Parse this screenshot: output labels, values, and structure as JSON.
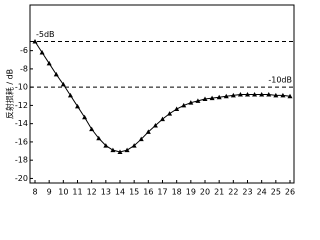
{
  "chart_data": {
    "type": "line",
    "y_label": "反射损耗 / dB",
    "x": [
      8,
      8.5,
      9,
      9.5,
      10,
      10.5,
      11,
      11.5,
      12,
      12.5,
      13,
      13.5,
      14,
      14.5,
      15,
      15.5,
      16,
      16.5,
      17,
      17.5,
      18,
      18.5,
      19,
      19.5,
      20,
      20.5,
      21,
      21.5,
      22,
      22.5,
      23,
      23.5,
      24,
      24.5,
      25,
      25.5,
      26
    ],
    "series": [
      {
        "color": "#000000",
        "values": [
          -5,
          -6.2,
          -7.4,
          -8.6,
          -9.7,
          -10.9,
          -12.1,
          -13.3,
          -14.6,
          -15.6,
          -16.4,
          -16.9,
          -17.1,
          -16.9,
          -16.4,
          -15.7,
          -14.9,
          -14.2,
          -13.5,
          -12.9,
          -12.4,
          -12,
          -11.7,
          -11.5,
          -11.3,
          -11.2,
          -11.1,
          -11,
          -10.9,
          -10.8,
          -10.8,
          -10.8,
          -10.8,
          -10.8,
          -10.9,
          -10.9,
          -11
        ]
      }
    ],
    "xlim": [
      8,
      26
    ],
    "xticks": [
      8,
      9,
      10,
      11,
      12,
      13,
      14,
      15,
      16,
      17,
      18,
      19,
      20,
      21,
      22,
      23,
      24,
      25,
      26
    ],
    "ylim": [
      -20.5,
      -1
    ],
    "yticks": [
      -20,
      -18,
      -16,
      -14,
      -12,
      -10,
      -8,
      -6
    ],
    "reference_lines": [
      {
        "value": -5,
        "label": "-5dB"
      },
      {
        "value": -10,
        "label": "-10dB"
      }
    ]
  }
}
